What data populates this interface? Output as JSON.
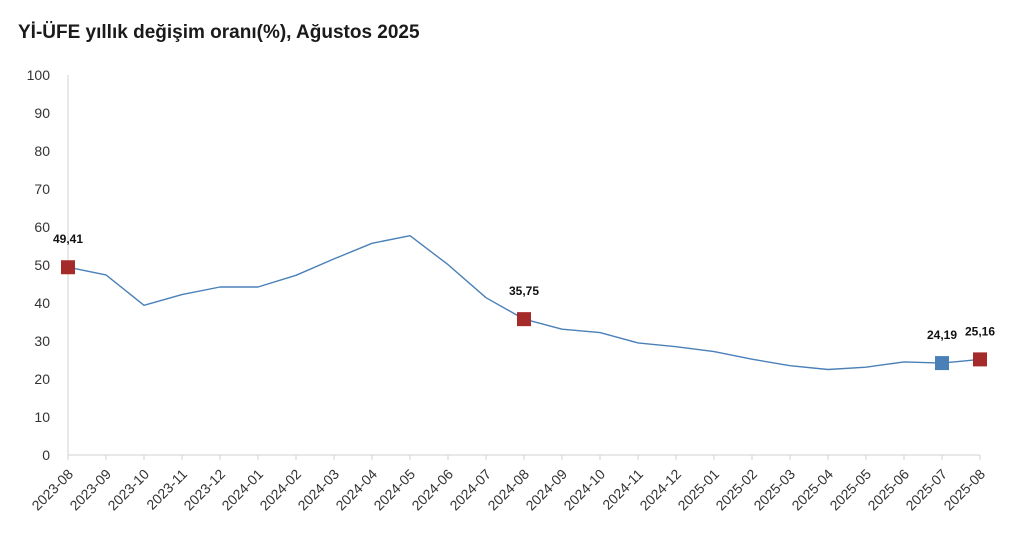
{
  "chart_data": {
    "type": "line",
    "title": "Yİ-ÜFE yıllık değişim oranı(%), Ağustos 2025",
    "xlabel": "",
    "ylabel": "",
    "ylim": [
      0,
      100
    ],
    "yticks": [
      "0",
      "10",
      "20",
      "30",
      "40",
      "50",
      "60",
      "70",
      "80",
      "90",
      "100"
    ],
    "grid": false,
    "categories": [
      "2023-08",
      "2023-09",
      "2023-10",
      "2023-11",
      "2023-12",
      "2024-01",
      "2024-02",
      "2024-03",
      "2024-04",
      "2024-05",
      "2024-06",
      "2024-07",
      "2024-08",
      "2024-09",
      "2024-10",
      "2024-11",
      "2024-12",
      "2025-01",
      "2025-02",
      "2025-03",
      "2025-04",
      "2025-05",
      "2025-06",
      "2025-07",
      "2025-08"
    ],
    "series": [
      {
        "values": [
          49.41,
          47.4,
          39.4,
          42.2,
          44.2,
          44.2,
          47.3,
          51.6,
          55.7,
          57.7,
          50.1,
          41.4,
          35.75,
          33.1,
          32.2,
          29.5,
          28.5,
          27.2,
          25.2,
          23.5,
          22.5,
          23.1,
          24.5,
          24.19,
          25.16
        ],
        "color": "#4a80b8"
      }
    ],
    "markers": [
      {
        "category": "2023-08",
        "value": 49.41,
        "label": "49,41",
        "color": "#a52a2a"
      },
      {
        "category": "2024-08",
        "value": 35.75,
        "label": "35,75",
        "color": "#a52a2a"
      },
      {
        "category": "2025-07",
        "value": 24.19,
        "label": "24,19",
        "color": "#4a80b8"
      },
      {
        "category": "2025-08",
        "value": 25.16,
        "label": "25,16",
        "color": "#a52a2a"
      }
    ]
  }
}
